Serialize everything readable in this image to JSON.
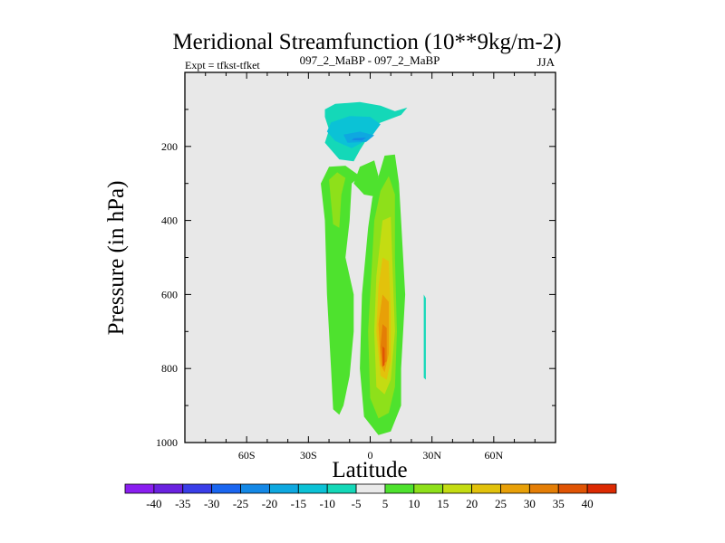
{
  "chart_data": {
    "type": "heatmap",
    "title": "Meridional Streamfunction (10**9kg/m-2)",
    "subtitle_left": "Expt = tfkst-tfket",
    "subtitle_center": "097_2_MaBP - 097_2_MaBP",
    "subtitle_right": "JJA",
    "xlabel": "Latitude",
    "ylabel": "Pressure (in hPa)",
    "xlim": [
      -90,
      90
    ],
    "ylim": [
      1000,
      0
    ],
    "x_ticks": [
      -60,
      -30,
      0,
      30,
      60
    ],
    "x_tick_labels": [
      "60S",
      "30S",
      "0",
      "30N",
      "60N"
    ],
    "y_ticks": [
      200,
      400,
      600,
      800,
      1000
    ],
    "y_tick_labels": [
      "200",
      "400",
      "600",
      "800",
      "1000"
    ],
    "colorbar": {
      "labels": [
        "-40",
        "-35",
        "-30",
        "-25",
        "-20",
        "-15",
        "-10",
        "-5",
        "5",
        "10",
        "15",
        "20",
        "25",
        "30",
        "35",
        "40"
      ],
      "colors": [
        "#8a1ef0",
        "#6a22e0",
        "#3a3ee8",
        "#1a66f0",
        "#1488e6",
        "#0ea8e0",
        "#0bc2d6",
        "#14d8b8",
        "#eaeaea",
        "#4ee22e",
        "#8ee01a",
        "#c4dc12",
        "#e2c20c",
        "#e8a008",
        "#e47e06",
        "#e05404",
        "#dc2a02"
      ]
    },
    "features": [
      {
        "name": "negative-cell-upper",
        "level_color": "#14d8b8",
        "points": [
          [
            -22,
            100
          ],
          [
            -17,
            85
          ],
          [
            -5,
            80
          ],
          [
            5,
            90
          ],
          [
            12,
            105
          ],
          [
            18,
            95
          ],
          [
            15,
            115
          ],
          [
            3,
            140
          ],
          [
            -5,
            210
          ],
          [
            -8,
            240
          ],
          [
            -15,
            235
          ],
          [
            -22,
            190
          ],
          [
            -20,
            155
          ],
          [
            -22,
            120
          ]
        ]
      },
      {
        "name": "negative-cell-upper",
        "level_color": "#0bc2d6",
        "points": [
          [
            -19,
            135
          ],
          [
            -10,
            118
          ],
          [
            0,
            120
          ],
          [
            5,
            140
          ],
          [
            0,
            178
          ],
          [
            -9,
            205
          ],
          [
            -17,
            185
          ],
          [
            -21,
            160
          ]
        ]
      },
      {
        "name": "negative-cell-upper",
        "level_color": "#0ea8e0",
        "points": [
          [
            -13,
            168
          ],
          [
            -5,
            160
          ],
          [
            2,
            170
          ],
          [
            -2,
            188
          ],
          [
            -11,
            190
          ]
        ]
      },
      {
        "name": "negative-cell-core",
        "level_color": "#1488e6",
        "points": [
          [
            -8,
            178
          ],
          [
            -2,
            176
          ],
          [
            -4,
            184
          ],
          [
            -9,
            183
          ]
        ]
      },
      {
        "name": "south-positive-band",
        "level_color": "#4ee22e",
        "points": [
          [
            -24,
            300
          ],
          [
            -20,
            255
          ],
          [
            -12,
            252
          ],
          [
            -5,
            280
          ],
          [
            -9,
            300
          ],
          [
            -10,
            400
          ],
          [
            -12,
            500
          ],
          [
            -8,
            600
          ],
          [
            -8,
            700
          ],
          [
            -10,
            820
          ],
          [
            -13,
            900
          ],
          [
            -15,
            925
          ],
          [
            -18,
            910
          ],
          [
            -19,
            800
          ],
          [
            -21,
            600
          ],
          [
            -22,
            400
          ]
        ]
      },
      {
        "name": "south-positive-inner",
        "level_color": "#8ee01a",
        "points": [
          [
            -20,
            290
          ],
          [
            -16,
            270
          ],
          [
            -12,
            285
          ],
          [
            -14,
            330
          ],
          [
            -15,
            420
          ],
          [
            -18,
            410
          ],
          [
            -19,
            350
          ]
        ]
      },
      {
        "name": "bridge",
        "level_color": "#4ee22e",
        "points": [
          [
            -5,
            255
          ],
          [
            2,
            238
          ],
          [
            4,
            280
          ],
          [
            2,
            335
          ],
          [
            -3,
            330
          ],
          [
            -8,
            300
          ]
        ]
      },
      {
        "name": "main-positive-cell",
        "level_color": "#4ee22e",
        "points": [
          [
            3,
            300
          ],
          [
            7,
            225
          ],
          [
            12,
            222
          ],
          [
            14,
            300
          ],
          [
            15,
            400
          ],
          [
            17,
            600
          ],
          [
            15,
            800
          ],
          [
            15,
            900
          ],
          [
            10,
            970
          ],
          [
            4,
            980
          ],
          [
            -3,
            930
          ],
          [
            -5,
            800
          ],
          [
            -4,
            600
          ],
          [
            -1,
            420
          ],
          [
            1,
            340
          ]
        ]
      },
      {
        "name": "main-positive-cell",
        "level_color": "#8ee01a",
        "points": [
          [
            5,
            320
          ],
          [
            9,
            280
          ],
          [
            12,
            330
          ],
          [
            12,
            500
          ],
          [
            13,
            700
          ],
          [
            12,
            850
          ],
          [
            9,
            920
          ],
          [
            4,
            935
          ],
          [
            0,
            880
          ],
          [
            -1,
            700
          ],
          [
            1,
            500
          ],
          [
            2,
            400
          ]
        ]
      },
      {
        "name": "main-positive-cell",
        "level_color": "#c4dc12",
        "points": [
          [
            6,
            400
          ],
          [
            10,
            390
          ],
          [
            11,
            550
          ],
          [
            12,
            700
          ],
          [
            10,
            830
          ],
          [
            7,
            870
          ],
          [
            3,
            850
          ],
          [
            2,
            700
          ],
          [
            3,
            550
          ]
        ]
      },
      {
        "name": "main-positive-cell",
        "level_color": "#e2c20c",
        "points": [
          [
            6,
            500
          ],
          [
            9,
            510
          ],
          [
            10,
            650
          ],
          [
            10,
            780
          ],
          [
            8,
            830
          ],
          [
            5,
            820
          ],
          [
            3,
            700
          ],
          [
            4,
            580
          ]
        ]
      },
      {
        "name": "main-positive-cell",
        "level_color": "#e8a008",
        "points": [
          [
            6,
            600
          ],
          [
            9,
            620
          ],
          [
            9,
            760
          ],
          [
            7,
            810
          ],
          [
            5,
            790
          ],
          [
            4,
            680
          ]
        ]
      },
      {
        "name": "main-positive-core",
        "level_color": "#e47e06",
        "points": [
          [
            6,
            680
          ],
          [
            8,
            690
          ],
          [
            8,
            780
          ],
          [
            6,
            790
          ],
          [
            5,
            740
          ]
        ]
      },
      {
        "name": "main-positive-core",
        "level_color": "#e05404",
        "points": [
          [
            6,
            740
          ],
          [
            7,
            745
          ],
          [
            7,
            790
          ],
          [
            6,
            795
          ]
        ]
      },
      {
        "name": "thin-negative-sliver",
        "level_color": "#14d8b8",
        "points": [
          [
            26,
            600
          ],
          [
            27,
            610
          ],
          [
            27,
            830
          ],
          [
            26,
            825
          ]
        ]
      }
    ]
  }
}
